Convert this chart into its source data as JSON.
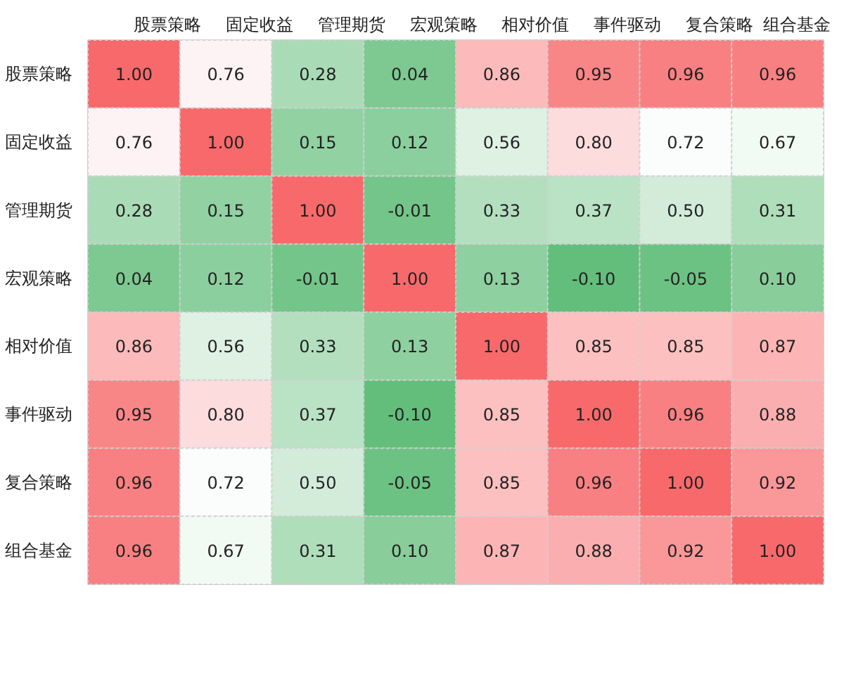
{
  "chart_data": {
    "type": "heatmap",
    "categories": [
      "股票策略",
      "固定收益",
      "管理期货",
      "宏观策略",
      "相对价值",
      "事件驱动",
      "复合策略",
      "组合基金"
    ],
    "y_categories": [
      "股票策略",
      "固定收益",
      "管理期货",
      "宏观策略",
      "相对价值",
      "事件驱动",
      "复合策略",
      "组合基金"
    ],
    "cells": [
      [
        1.0,
        0.76,
        0.28,
        0.04,
        0.86,
        0.95,
        0.96,
        0.96
      ],
      [
        0.76,
        1.0,
        0.15,
        0.12,
        0.56,
        0.8,
        0.72,
        0.67
      ],
      [
        0.28,
        0.15,
        1.0,
        -0.01,
        0.33,
        0.37,
        0.5,
        0.31
      ],
      [
        0.04,
        0.12,
        -0.01,
        1.0,
        0.13,
        -0.1,
        -0.05,
        0.1
      ],
      [
        0.86,
        0.56,
        0.33,
        0.13,
        1.0,
        0.85,
        0.85,
        0.87
      ],
      [
        0.95,
        0.8,
        0.37,
        -0.1,
        0.85,
        1.0,
        0.96,
        0.88
      ],
      [
        0.96,
        0.72,
        0.5,
        -0.05,
        0.85,
        0.96,
        1.0,
        0.92
      ],
      [
        0.96,
        0.67,
        0.31,
        0.1,
        0.87,
        0.88,
        0.92,
        1.0
      ]
    ],
    "cell_labels": [
      [
        "1.00",
        "0.76",
        "0.28",
        "0.04",
        "0.86",
        "0.95",
        "0.96",
        "0.96"
      ],
      [
        "0.76",
        "1.00",
        "0.15",
        "0.12",
        "0.56",
        "0.80",
        "0.72",
        "0.67"
      ],
      [
        "0.28",
        "0.15",
        "1.00",
        "-0.01",
        "0.33",
        "0.37",
        "0.50",
        "0.31"
      ],
      [
        "0.04",
        "0.12",
        "-0.01",
        "1.00",
        "0.13",
        "-0.10",
        "-0.05",
        "0.10"
      ],
      [
        "0.86",
        "0.56",
        "0.33",
        "0.13",
        "1.00",
        "0.85",
        "0.85",
        "0.87"
      ],
      [
        "0.95",
        "0.80",
        "0.37",
        "-0.10",
        "0.85",
        "1.00",
        "0.96",
        "0.88"
      ],
      [
        "0.96",
        "0.72",
        "0.50",
        "-0.05",
        "0.85",
        "0.96",
        "1.00",
        "0.92"
      ],
      [
        "0.96",
        "0.67",
        "0.31",
        "0.10",
        "0.87",
        "0.88",
        "0.92",
        "1.00"
      ]
    ],
    "colors": [
      "#63be7b",
      "#ffffff",
      "#f8696b"
    ]
  }
}
